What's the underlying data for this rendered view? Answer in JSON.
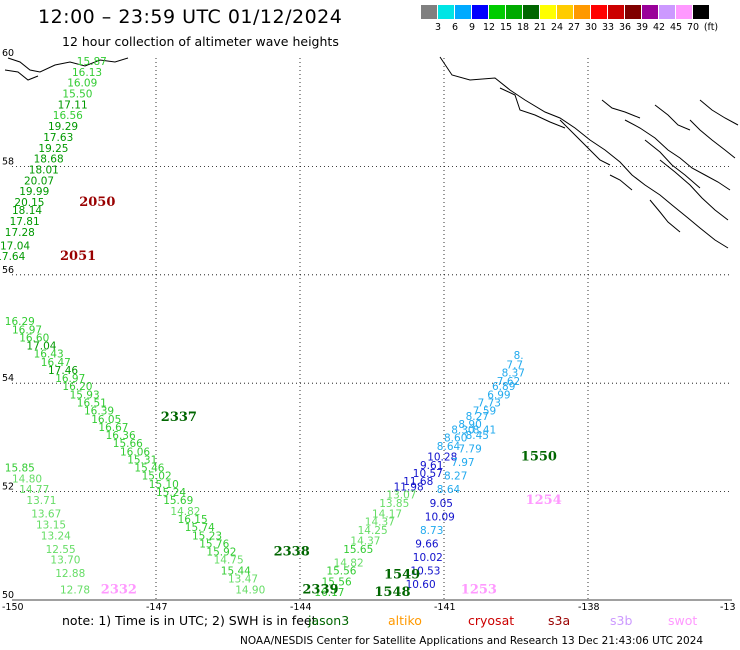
{
  "header": {
    "title": "12:00 – 23:59 UTC 01/12/2024",
    "subtitle": "12 hour collection of altimeter wave heights"
  },
  "colorbar": {
    "unit": "(ft)",
    "colors": [
      "#808080",
      "#00e5e5",
      "#00aaff",
      "#0000ff",
      "#00cc00",
      "#00aa00",
      "#006600",
      "#ffff00",
      "#ffcc00",
      "#ff9900",
      "#ff0000",
      "#cc0000",
      "#800000",
      "#990099",
      "#cc99ff",
      "#ff99ff",
      "#000000"
    ],
    "labels": [
      "3",
      "6",
      "9",
      "12",
      "15",
      "18",
      "21",
      "24",
      "27",
      "30",
      "33",
      "36",
      "39",
      "42",
      "45",
      "70"
    ]
  },
  "map": {
    "lon_ticks": [
      "-150",
      "-147",
      "-144",
      "-141",
      "-138",
      "-13"
    ],
    "lat_ticks": [
      "60",
      "58",
      "56",
      "54",
      "52",
      "50"
    ],
    "readings": [
      {
        "lat": 59.87,
        "lon": -148.65,
        "v": "15.87",
        "c": "#33cc33"
      },
      {
        "lat": 59.67,
        "lon": -148.75,
        "v": "16.13",
        "c": "#33cc33"
      },
      {
        "lat": 59.47,
        "lon": -148.85,
        "v": "16.09",
        "c": "#33cc33"
      },
      {
        "lat": 59.27,
        "lon": -148.95,
        "v": "15.50",
        "c": "#33cc33"
      },
      {
        "lat": 59.07,
        "lon": -149.05,
        "v": "17.11",
        "c": "#009900"
      },
      {
        "lat": 58.87,
        "lon": -149.15,
        "v": "16.56",
        "c": "#33cc33"
      },
      {
        "lat": 58.67,
        "lon": -149.25,
        "v": "19.29",
        "c": "#009900"
      },
      {
        "lat": 58.47,
        "lon": -149.35,
        "v": "17.63",
        "c": "#009900"
      },
      {
        "lat": 58.27,
        "lon": -149.45,
        "v": "19.25",
        "c": "#009900"
      },
      {
        "lat": 58.07,
        "lon": -149.55,
        "v": "18.68",
        "c": "#009900"
      },
      {
        "lat": 57.87,
        "lon": -149.65,
        "v": "18.01",
        "c": "#009900"
      },
      {
        "lat": 57.67,
        "lon": -149.75,
        "v": "20.07",
        "c": "#009900"
      },
      {
        "lat": 57.47,
        "lon": -149.85,
        "v": "19.99",
        "c": "#009900"
      },
      {
        "lat": 57.27,
        "lon": -149.95,
        "v": "20.15",
        "c": "#009900"
      },
      {
        "lat": 57.12,
        "lon": -150.0,
        "v": "18.14",
        "c": "#009900"
      },
      {
        "lat": 56.92,
        "lon": -150.05,
        "v": "17.81",
        "c": "#009900"
      },
      {
        "lat": 56.72,
        "lon": -150.15,
        "v": "17.28",
        "c": "#009900"
      },
      {
        "lat": 56.47,
        "lon": -150.25,
        "v": "17.04",
        "c": "#009900"
      },
      {
        "lat": 56.27,
        "lon": -150.35,
        "v": "17.64",
        "c": "#009900"
      },
      {
        "lat": 55.07,
        "lon": -150.15,
        "v": "16.29",
        "c": "#33cc33"
      },
      {
        "lat": 54.92,
        "lon": -150.0,
        "v": "16.97",
        "c": "#33cc33"
      },
      {
        "lat": 54.77,
        "lon": -149.85,
        "v": "16.60",
        "c": "#33cc33"
      },
      {
        "lat": 54.62,
        "lon": -149.7,
        "v": "17.04",
        "c": "#009900"
      },
      {
        "lat": 54.47,
        "lon": -149.55,
        "v": "16.43",
        "c": "#33cc33"
      },
      {
        "lat": 54.32,
        "lon": -149.4,
        "v": "16.47",
        "c": "#33cc33"
      },
      {
        "lat": 54.17,
        "lon": -149.25,
        "v": "17.46",
        "c": "#009900"
      },
      {
        "lat": 54.02,
        "lon": -149.1,
        "v": "16.97",
        "c": "#33cc33"
      },
      {
        "lat": 53.87,
        "lon": -148.95,
        "v": "16.20",
        "c": "#33cc33"
      },
      {
        "lat": 53.72,
        "lon": -148.8,
        "v": "15.93",
        "c": "#33cc33"
      },
      {
        "lat": 53.57,
        "lon": -148.65,
        "v": "16.51",
        "c": "#33cc33"
      },
      {
        "lat": 53.42,
        "lon": -148.5,
        "v": "16.39",
        "c": "#33cc33"
      },
      {
        "lat": 53.27,
        "lon": -148.35,
        "v": "16.05",
        "c": "#33cc33"
      },
      {
        "lat": 53.12,
        "lon": -148.2,
        "v": "16.67",
        "c": "#33cc33"
      },
      {
        "lat": 52.97,
        "lon": -148.05,
        "v": "16.36",
        "c": "#33cc33"
      },
      {
        "lat": 52.82,
        "lon": -147.9,
        "v": "15.66",
        "c": "#33cc33"
      },
      {
        "lat": 52.67,
        "lon": -147.75,
        "v": "16.06",
        "c": "#33cc33"
      },
      {
        "lat": 52.52,
        "lon": -147.6,
        "v": "15.31",
        "c": "#33cc33"
      },
      {
        "lat": 52.37,
        "lon": -147.45,
        "v": "15.46",
        "c": "#33cc33"
      },
      {
        "lat": 52.22,
        "lon": -147.3,
        "v": "15.02",
        "c": "#33cc33"
      },
      {
        "lat": 52.07,
        "lon": -147.15,
        "v": "15.10",
        "c": "#33cc33"
      },
      {
        "lat": 51.92,
        "lon": -147.0,
        "v": "15.24",
        "c": "#33cc33"
      },
      {
        "lat": 51.77,
        "lon": -146.85,
        "v": "15.69",
        "c": "#33cc33"
      },
      {
        "lat": 51.57,
        "lon": -146.7,
        "v": "14.82",
        "c": "#66dd66"
      },
      {
        "lat": 51.42,
        "lon": -146.55,
        "v": "16.15",
        "c": "#33cc33"
      },
      {
        "lat": 51.27,
        "lon": -146.4,
        "v": "15.74",
        "c": "#33cc33"
      },
      {
        "lat": 51.12,
        "lon": -146.25,
        "v": "15.23",
        "c": "#33cc33"
      },
      {
        "lat": 50.97,
        "lon": -146.1,
        "v": "15.76",
        "c": "#33cc33"
      },
      {
        "lat": 50.82,
        "lon": -145.95,
        "v": "15.92",
        "c": "#33cc33"
      },
      {
        "lat": 50.67,
        "lon": -145.8,
        "v": "14.75",
        "c": "#66dd66"
      },
      {
        "lat": 50.47,
        "lon": -145.65,
        "v": "15.44",
        "c": "#33cc33"
      },
      {
        "lat": 50.32,
        "lon": -145.5,
        "v": "13.47",
        "c": "#66dd66"
      },
      {
        "lat": 50.12,
        "lon": -145.35,
        "v": "14.90",
        "c": "#66dd66"
      },
      {
        "lat": 52.37,
        "lon": -150.15,
        "v": "15.85",
        "c": "#33cc33"
      },
      {
        "lat": 52.17,
        "lon": -150.0,
        "v": "14.80",
        "c": "#66dd66"
      },
      {
        "lat": 51.97,
        "lon": -149.85,
        "v": "14.77",
        "c": "#66dd66"
      },
      {
        "lat": 51.77,
        "lon": -149.7,
        "v": "13.71",
        "c": "#66dd66"
      },
      {
        "lat": 51.52,
        "lon": -149.6,
        "v": "13.67",
        "c": "#66dd66"
      },
      {
        "lat": 51.32,
        "lon": -149.5,
        "v": "13.15",
        "c": "#66dd66"
      },
      {
        "lat": 51.12,
        "lon": -149.4,
        "v": "13.24",
        "c": "#66dd66"
      },
      {
        "lat": 50.87,
        "lon": -149.3,
        "v": "12.55",
        "c": "#66dd66"
      },
      {
        "lat": 50.67,
        "lon": -149.2,
        "v": "13.70",
        "c": "#66dd66"
      },
      {
        "lat": 50.42,
        "lon": -149.1,
        "v": "12.88",
        "c": "#66dd66"
      },
      {
        "lat": 50.12,
        "lon": -149.0,
        "v": "12.78",
        "c": "#66dd66"
      },
      {
        "lat": 50.07,
        "lon": -143.7,
        "v": "16.17",
        "c": "#33cc33"
      },
      {
        "lat": 50.27,
        "lon": -143.55,
        "v": "15.56",
        "c": "#33cc33"
      },
      {
        "lat": 50.47,
        "lon": -143.45,
        "v": "15.56",
        "c": "#33cc33"
      },
      {
        "lat": 50.62,
        "lon": -143.3,
        "v": "14.82",
        "c": "#66dd66"
      },
      {
        "lat": 50.87,
        "lon": -143.1,
        "v": "15.65",
        "c": "#33cc33"
      },
      {
        "lat": 51.02,
        "lon": -142.95,
        "v": "14.37",
        "c": "#66dd66"
      },
      {
        "lat": 51.22,
        "lon": -142.8,
        "v": "14.25",
        "c": "#66dd66"
      },
      {
        "lat": 51.37,
        "lon": -142.65,
        "v": "14.37",
        "c": "#66dd66"
      },
      {
        "lat": 51.52,
        "lon": -142.5,
        "v": "14.17",
        "c": "#66dd66"
      },
      {
        "lat": 51.72,
        "lon": -142.35,
        "v": "13.85",
        "c": "#66dd66"
      },
      {
        "lat": 51.87,
        "lon": -142.2,
        "v": "13.07",
        "c": "#66dd66"
      },
      {
        "lat": 52.02,
        "lon": -142.05,
        "v": "11.98",
        "c": "#1111cc"
      },
      {
        "lat": 52.12,
        "lon": -141.85,
        "v": "11.68",
        "c": "#1111cc"
      },
      {
        "lat": 52.27,
        "lon": -141.65,
        "v": "10.57",
        "c": "#1111cc"
      },
      {
        "lat": 52.42,
        "lon": -141.5,
        "v": "9.61",
        "c": "#1111cc"
      },
      {
        "lat": 52.57,
        "lon": -141.35,
        "v": "10.28",
        "c": "#1111cc"
      },
      {
        "lat": 52.77,
        "lon": -141.15,
        "v": "8.64",
        "c": "#22aaee"
      },
      {
        "lat": 52.92,
        "lon": -141.0,
        "v": "8.60",
        "c": "#22aaee"
      },
      {
        "lat": 53.07,
        "lon": -140.85,
        "v": "8.30",
        "c": "#22aaee"
      },
      {
        "lat": 53.17,
        "lon": -140.7,
        "v": "8.90",
        "c": "#22aaee"
      },
      {
        "lat": 53.32,
        "lon": -140.55,
        "v": "8.27",
        "c": "#22aaee"
      },
      {
        "lat": 53.42,
        "lon": -140.4,
        "v": "7.59",
        "c": "#22aaee"
      },
      {
        "lat": 53.57,
        "lon": -140.3,
        "v": "7.73",
        "c": "#22aaee"
      },
      {
        "lat": 53.72,
        "lon": -140.1,
        "v": "6.99",
        "c": "#22aaee"
      },
      {
        "lat": 53.87,
        "lon": -140.0,
        "v": "6.89",
        "c": "#22aaee"
      },
      {
        "lat": 53.97,
        "lon": -139.9,
        "v": "7.62",
        "c": "#22aaee"
      },
      {
        "lat": 54.12,
        "lon": -139.8,
        "v": "8.37",
        "c": "#22aaee"
      },
      {
        "lat": 54.27,
        "lon": -139.7,
        "v": "7.7",
        "c": "#22aaee"
      },
      {
        "lat": 54.45,
        "lon": -139.55,
        "v": "8.",
        "c": "#22aaee"
      },
      {
        "lat": 53.07,
        "lon": -140.4,
        "v": "8.41",
        "c": "#22aaee"
      },
      {
        "lat": 52.97,
        "lon": -140.55,
        "v": "8.45",
        "c": "#22aaee"
      },
      {
        "lat": 52.72,
        "lon": -140.7,
        "v": "7.79",
        "c": "#22aaee"
      },
      {
        "lat": 52.47,
        "lon": -140.85,
        "v": "7.97",
        "c": "#22aaee"
      },
      {
        "lat": 52.22,
        "lon": -141.0,
        "v": "8.27",
        "c": "#22aaee"
      },
      {
        "lat": 51.97,
        "lon": -141.15,
        "v": "8.64",
        "c": "#22aaee"
      },
      {
        "lat": 51.72,
        "lon": -141.3,
        "v": "9.05",
        "c": "#1111cc"
      },
      {
        "lat": 51.47,
        "lon": -141.4,
        "v": "10.09",
        "c": "#1111cc"
      },
      {
        "lat": 51.22,
        "lon": -141.5,
        "v": "8.73",
        "c": "#22aaee"
      },
      {
        "lat": 50.97,
        "lon": -141.6,
        "v": "9.66",
        "c": "#1111cc"
      },
      {
        "lat": 50.72,
        "lon": -141.65,
        "v": "10.02",
        "c": "#1111cc"
      },
      {
        "lat": 50.47,
        "lon": -141.7,
        "v": "10.53",
        "c": "#1111cc"
      },
      {
        "lat": 50.22,
        "lon": -141.8,
        "v": "10.60",
        "c": "#1111cc"
      }
    ],
    "pass_labels": [
      {
        "text": "2050",
        "lat": 57.27,
        "lon": -148.6,
        "c": "#990000"
      },
      {
        "text": "2051",
        "lat": 56.27,
        "lon": -149.0,
        "c": "#990000"
      },
      {
        "text": "2337",
        "lat": 53.3,
        "lon": -146.9,
        "c": "#006600"
      },
      {
        "text": "2338",
        "lat": 50.82,
        "lon": -144.55,
        "c": "#006600"
      },
      {
        "text": "2339",
        "lat": 50.12,
        "lon": -143.95,
        "c": "#006600"
      },
      {
        "text": "2332",
        "lat": 50.12,
        "lon": -148.15,
        "c": "#ff99ff"
      },
      {
        "text": "1549",
        "lat": 50.4,
        "lon": -142.25,
        "c": "#006600"
      },
      {
        "text": "1548",
        "lat": 50.07,
        "lon": -142.45,
        "c": "#006600"
      },
      {
        "text": "1550",
        "lat": 52.57,
        "lon": -139.4,
        "c": "#006600"
      },
      {
        "text": "1254",
        "lat": 51.77,
        "lon": -139.3,
        "c": "#ff99ff"
      },
      {
        "text": "1253",
        "lat": 50.12,
        "lon": -140.65,
        "c": "#ff99ff"
      }
    ]
  },
  "footer": {
    "note": "note:  1) Time is in UTC; 2) SWH is in feet",
    "satellites": [
      {
        "name": "jason3",
        "color": "#006600"
      },
      {
        "name": "altiko",
        "color": "#ff9900"
      },
      {
        "name": "cryosat",
        "color": "#cc0000"
      },
      {
        "name": "s3a",
        "color": "#990000"
      },
      {
        "name": "s3b",
        "color": "#cc99ff"
      },
      {
        "name": "swot",
        "color": "#ff99ff"
      }
    ],
    "credit": "NOAA/NESDIS Center for Satellite Applications and Research    13 Dec 21:43:06 UTC 2024"
  }
}
